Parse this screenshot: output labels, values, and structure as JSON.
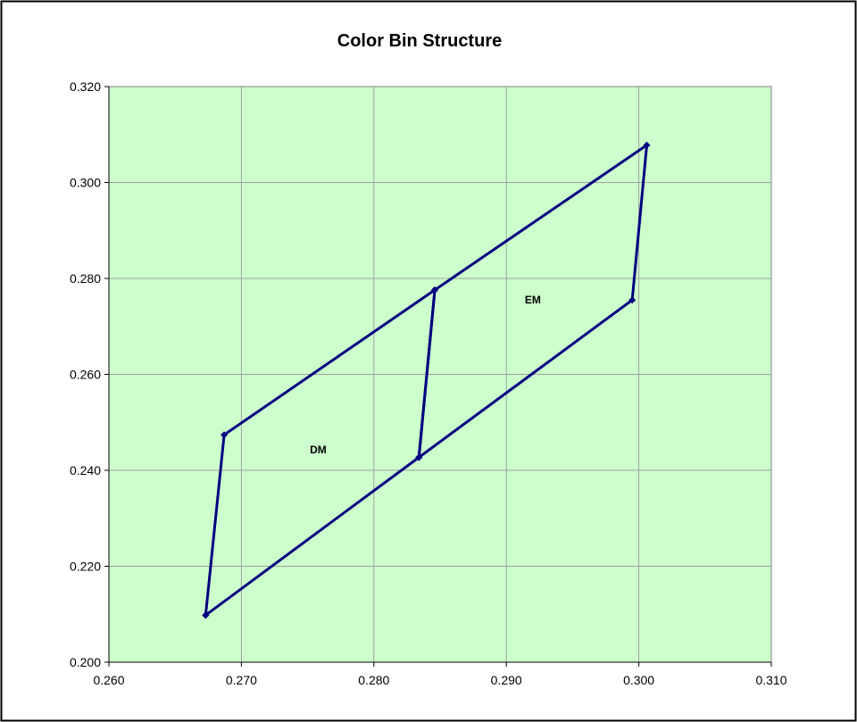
{
  "chart_data": {
    "type": "scatter",
    "title": "Color Bin Structure",
    "xlabel": "",
    "ylabel": "",
    "xlim": [
      0.26,
      0.31
    ],
    "ylim": [
      0.2,
      0.32
    ],
    "x_ticks": [
      "0.260",
      "0.270",
      "0.280",
      "0.290",
      "0.300",
      "0.310"
    ],
    "y_ticks": [
      "0.200",
      "0.220",
      "0.240",
      "0.260",
      "0.280",
      "0.300",
      "0.320"
    ],
    "grid": true,
    "legend": "none",
    "series": [
      {
        "x": [
          0.2673,
          0.2687,
          0.2846,
          0.2834,
          0.2673
        ],
        "y": [
          0.2098,
          0.2474,
          0.2776,
          0.2427,
          0.2098
        ]
      },
      {
        "x": [
          0.2834,
          0.2846,
          0.3006,
          0.2995,
          0.2834
        ],
        "y": [
          0.2427,
          0.2776,
          0.3078,
          0.2755,
          0.2427
        ]
      }
    ],
    "annotations": [
      {
        "text": "DM",
        "x": 0.2758,
        "y": 0.2443
      },
      {
        "text": "EM",
        "x": 0.292,
        "y": 0.2755
      }
    ],
    "colors": {
      "plot_background": "#ccffcc",
      "series_line": "#000080",
      "gridline": "#a0a0a0",
      "frame": "#000000"
    }
  }
}
